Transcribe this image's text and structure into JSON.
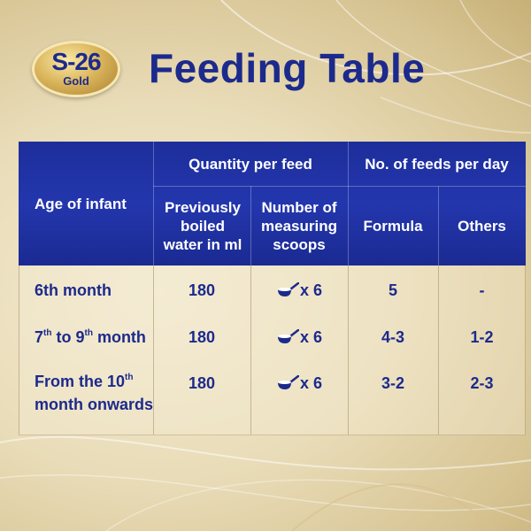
{
  "logo": {
    "main": "S-26",
    "sub": "Gold"
  },
  "title": "Feeding Table",
  "table": {
    "headers": {
      "age": "Age of infant",
      "quantity_group": "Quantity per feed",
      "water": "Previously boiled water in ml",
      "scoops": "Number of measuring scoops",
      "feeds_group": "No. of feeds per day",
      "formula": "Formula",
      "others": "Others"
    },
    "rows": [
      {
        "age": "6th month",
        "water": "180",
        "scoops": "x 6",
        "formula": "5",
        "others": "-"
      },
      {
        "age_prefix": "7",
        "age_sup1": "th",
        "age_mid": " to 9",
        "age_sup2": "th",
        "age_suffix": " month",
        "water": "180",
        "scoops": "x 6",
        "formula": "4-3",
        "others": "1-2"
      },
      {
        "age_prefix": "From the 10",
        "age_sup1": "th",
        "age_line2": "month onwards",
        "water": "180",
        "scoops": "x 6",
        "formula": "3-2",
        "others": "2-3"
      }
    ]
  }
}
